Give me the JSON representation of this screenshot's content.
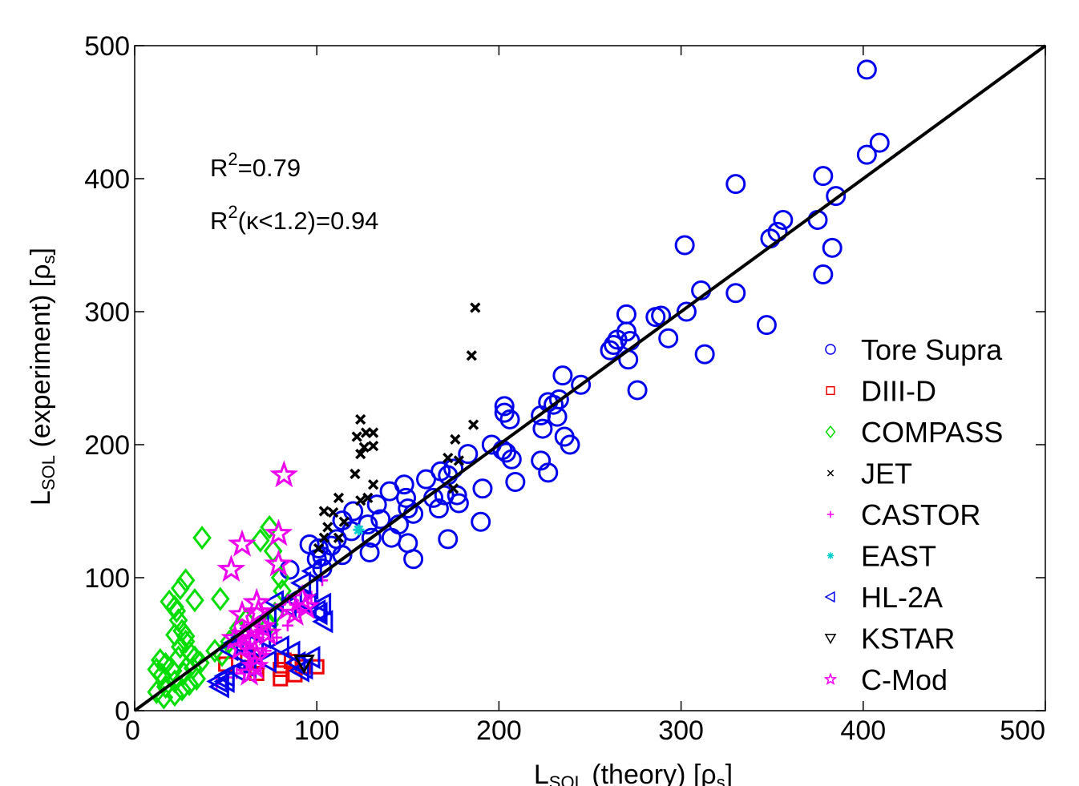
{
  "chart_data": {
    "type": "scatter",
    "title": "",
    "xlabel": {
      "main": "L",
      "sub": "SOL",
      "rest": " (theory) [ρ",
      "sub2": "s",
      "end": "]"
    },
    "ylabel": {
      "main": "L",
      "sub": "SOL",
      "rest": " (experiment) [ρ",
      "sub2": "s",
      "end": "]"
    },
    "xlim": [
      0,
      500
    ],
    "ylim": [
      0,
      500
    ],
    "xticks": [
      "0",
      "100",
      "200",
      "300",
      "400",
      "500"
    ],
    "yticks": [
      "0",
      "100",
      "200",
      "300",
      "400",
      "500"
    ],
    "grid": false,
    "legend_position": "bottom-right",
    "annotations": [
      {
        "base": "R",
        "sup": "2",
        "rest": "=0.79"
      },
      {
        "base": "R",
        "sup": "2",
        "rest": "(κ<1.2)=0.94"
      }
    ],
    "reference_line": {
      "x": [
        0,
        500
      ],
      "y": [
        0,
        500
      ],
      "color": "#000000"
    },
    "series": [
      {
        "name": "Tore Supra",
        "marker": "circle",
        "color": "#0000ee",
        "points": [
          [
            402,
            482
          ],
          [
            409,
            427
          ],
          [
            402,
            418
          ],
          [
            330,
            396
          ],
          [
            378,
            402
          ],
          [
            385,
            387
          ],
          [
            356,
            369
          ],
          [
            353,
            360
          ],
          [
            349,
            355
          ],
          [
            375,
            369
          ],
          [
            383,
            348
          ],
          [
            378,
            328
          ],
          [
            302,
            350
          ],
          [
            311,
            316
          ],
          [
            330,
            314
          ],
          [
            303,
            300
          ],
          [
            347,
            290
          ],
          [
            313,
            268
          ],
          [
            270,
            298
          ],
          [
            293,
            280
          ],
          [
            286,
            296
          ],
          [
            289,
            297
          ],
          [
            270,
            285
          ],
          [
            272,
            278
          ],
          [
            265,
            279
          ],
          [
            263,
            275
          ],
          [
            261,
            271
          ],
          [
            271,
            264
          ],
          [
            276,
            241
          ],
          [
            235,
            252
          ],
          [
            245,
            245
          ],
          [
            233,
            234
          ],
          [
            230,
            230
          ],
          [
            223,
            222
          ],
          [
            227,
            232
          ],
          [
            232,
            221
          ],
          [
            224,
            212
          ],
          [
            236,
            206
          ],
          [
            239,
            200
          ],
          [
            223,
            188
          ],
          [
            227,
            179
          ],
          [
            203,
            229
          ],
          [
            203,
            224
          ],
          [
            206,
            219
          ],
          [
            196,
            200
          ],
          [
            202,
            196
          ],
          [
            204,
            194
          ],
          [
            207,
            189
          ],
          [
            209,
            172
          ],
          [
            191,
            167
          ],
          [
            190,
            142
          ],
          [
            183,
            193
          ],
          [
            175,
            182
          ],
          [
            172,
            177
          ],
          [
            168,
            180
          ],
          [
            160,
            174
          ],
          [
            164,
            160
          ],
          [
            170,
            162
          ],
          [
            177,
            162
          ],
          [
            178,
            156
          ],
          [
            167,
            152
          ],
          [
            153,
            148
          ],
          [
            149,
            160
          ],
          [
            148,
            170
          ],
          [
            140,
            165
          ],
          [
            133,
            155
          ],
          [
            135,
            144
          ],
          [
            128,
            140
          ],
          [
            141,
            130
          ],
          [
            130,
            130
          ],
          [
            129,
            119
          ],
          [
            150,
            126
          ],
          [
            153,
            114
          ],
          [
            172,
            129
          ],
          [
            119,
            135
          ],
          [
            120,
            150
          ],
          [
            114,
            143
          ],
          [
            111,
            129
          ],
          [
            108,
            124
          ],
          [
            114,
            117
          ],
          [
            103,
            116
          ],
          [
            101,
            122
          ],
          [
            96,
            125
          ],
          [
            100,
            114
          ],
          [
            103,
            107
          ],
          [
            85,
            106
          ],
          [
            145,
            140
          ],
          [
            150,
            152
          ]
        ]
      },
      {
        "name": "DIII-D",
        "marker": "square",
        "color": "#ee0000",
        "points": [
          [
            50,
            35
          ],
          [
            62,
            42
          ],
          [
            66,
            36
          ],
          [
            67,
            28
          ],
          [
            82,
            38
          ],
          [
            86,
            37
          ],
          [
            80,
            31
          ],
          [
            92,
            33
          ],
          [
            100,
            33
          ],
          [
            88,
            27
          ],
          [
            80,
            24
          ]
        ]
      },
      {
        "name": "COMPASS",
        "marker": "diamond",
        "color": "#00dd00",
        "points": [
          [
            37,
            130
          ],
          [
            33,
            83
          ],
          [
            25,
            92
          ],
          [
            19,
            82
          ],
          [
            22,
            78
          ],
          [
            28,
            98
          ],
          [
            23,
            75
          ],
          [
            24,
            68
          ],
          [
            26,
            60
          ],
          [
            28,
            56
          ],
          [
            28,
            52
          ],
          [
            22,
            57
          ],
          [
            25,
            48
          ],
          [
            30,
            44
          ],
          [
            33,
            40
          ],
          [
            24,
            40
          ],
          [
            14,
            38
          ],
          [
            17,
            35
          ],
          [
            12,
            31
          ],
          [
            15,
            27
          ],
          [
            21,
            30
          ],
          [
            27,
            28
          ],
          [
            32,
            32
          ],
          [
            36,
            36
          ],
          [
            22,
            22
          ],
          [
            17,
            18
          ],
          [
            12,
            14
          ],
          [
            16,
            10
          ],
          [
            22,
            12
          ],
          [
            26,
            16
          ],
          [
            30,
            20
          ],
          [
            34,
            24
          ],
          [
            47,
            84
          ],
          [
            74,
            138
          ],
          [
            69,
            128
          ],
          [
            76,
            120
          ],
          [
            80,
            100
          ],
          [
            81,
            90
          ],
          [
            77,
            73
          ],
          [
            74,
            65
          ],
          [
            61,
            68
          ],
          [
            57,
            62
          ],
          [
            52,
            52
          ],
          [
            48,
            42
          ],
          [
            44,
            45
          ]
        ]
      },
      {
        "name": "JET",
        "marker": "x",
        "color": "#000000",
        "points": [
          [
            187,
            303
          ],
          [
            185,
            267
          ],
          [
            124,
            219
          ],
          [
            122,
            206
          ],
          [
            127,
            209
          ],
          [
            131,
            209
          ],
          [
            126,
            198
          ],
          [
            124,
            193
          ],
          [
            131,
            199
          ],
          [
            121,
            178
          ],
          [
            131,
            170
          ],
          [
            124,
            158
          ],
          [
            186,
            215
          ],
          [
            176,
            204
          ],
          [
            178,
            188
          ],
          [
            172,
            190
          ],
          [
            175,
            167
          ],
          [
            112,
            160
          ],
          [
            109,
            149
          ],
          [
            104,
            150
          ],
          [
            106,
            138
          ],
          [
            112,
            130
          ],
          [
            104,
            130
          ],
          [
            101,
            122
          ],
          [
            115,
            142
          ],
          [
            128,
            160
          ]
        ]
      },
      {
        "name": "CASTOR",
        "marker": "plus",
        "color": "#ee00ee",
        "points": [
          [
            45,
            20
          ],
          [
            51,
            25
          ],
          [
            56,
            28
          ],
          [
            61,
            32
          ],
          [
            66,
            36
          ],
          [
            72,
            45
          ],
          [
            78,
            55
          ],
          [
            84,
            64
          ],
          [
            91,
            74
          ],
          [
            97,
            86
          ],
          [
            103,
            98
          ]
        ]
      },
      {
        "name": "EAST",
        "marker": "asterisk",
        "color": "#00cccc",
        "points": [
          [
            123,
            136
          ]
        ]
      },
      {
        "name": "HL-2A",
        "marker": "triangle-left",
        "color": "#0000ee",
        "points": [
          [
            98,
            105
          ],
          [
            92,
            96
          ],
          [
            96,
            92
          ],
          [
            103,
            80
          ],
          [
            101,
            73
          ],
          [
            104,
            67
          ],
          [
            100,
            75
          ],
          [
            95,
            80
          ],
          [
            87,
            84
          ],
          [
            84,
            78
          ],
          [
            77,
            82
          ],
          [
            73,
            70
          ],
          [
            69,
            66
          ],
          [
            64,
            62
          ],
          [
            59,
            55
          ],
          [
            55,
            51
          ],
          [
            52,
            46
          ],
          [
            60,
            41
          ],
          [
            62,
            33
          ],
          [
            56,
            30
          ],
          [
            50,
            26
          ],
          [
            46,
            22
          ],
          [
            47,
            18
          ],
          [
            50,
            22
          ],
          [
            73,
            37
          ],
          [
            80,
            48
          ],
          [
            86,
            44
          ],
          [
            89,
            36
          ],
          [
            91,
            30
          ],
          [
            93,
            32
          ],
          [
            97,
            40
          ],
          [
            66,
            47
          ],
          [
            70,
            55
          ]
        ]
      },
      {
        "name": "KSTAR",
        "marker": "triangle-down",
        "color": "#000000",
        "points": [
          [
            93,
            36
          ]
        ]
      },
      {
        "name": "C-Mod",
        "marker": "star",
        "color": "#ee00ee",
        "points": [
          [
            82,
            177
          ],
          [
            79,
            133
          ],
          [
            59,
            125
          ],
          [
            79,
            110
          ],
          [
            53,
            106
          ],
          [
            67,
            81
          ],
          [
            59,
            72
          ],
          [
            68,
            74
          ],
          [
            70,
            63
          ],
          [
            65,
            61
          ],
          [
            73,
            58
          ],
          [
            64,
            52
          ],
          [
            60,
            57
          ],
          [
            55,
            54
          ],
          [
            58,
            47
          ],
          [
            66,
            44
          ],
          [
            67,
            40
          ],
          [
            66,
            33
          ],
          [
            63,
            28
          ],
          [
            84,
            77
          ],
          [
            88,
            73
          ],
          [
            94,
            78
          ],
          [
            92,
            84
          ]
        ]
      }
    ]
  }
}
